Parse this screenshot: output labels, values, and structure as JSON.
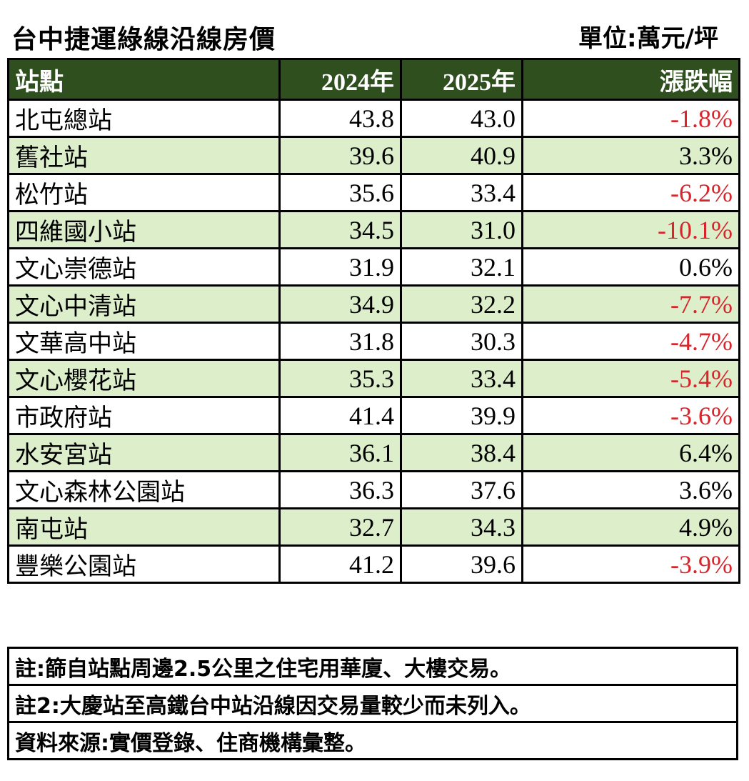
{
  "header": {
    "title": "台中捷運綠線沿線房價",
    "unit": "單位:萬元/坪"
  },
  "table": {
    "columns": [
      "站點",
      "2024年",
      "2025年",
      "漲跌幅"
    ],
    "rows": [
      {
        "station": "北屯總站",
        "y2024": "43.8",
        "y2025": "43.0",
        "change": "-1.8%"
      },
      {
        "station": "舊社站",
        "y2024": "39.6",
        "y2025": "40.9",
        "change": "3.3%"
      },
      {
        "station": "松竹站",
        "y2024": "35.6",
        "y2025": "33.4",
        "change": "-6.2%"
      },
      {
        "station": "四維國小站",
        "y2024": "34.5",
        "y2025": "31.0",
        "change": "-10.1%"
      },
      {
        "station": "文心崇德站",
        "y2024": "31.9",
        "y2025": "32.1",
        "change": "0.6%"
      },
      {
        "station": "文心中清站",
        "y2024": "34.9",
        "y2025": "32.2",
        "change": "-7.7%"
      },
      {
        "station": "文華高中站",
        "y2024": "31.8",
        "y2025": "30.3",
        "change": "-4.7%"
      },
      {
        "station": "文心櫻花站",
        "y2024": "35.3",
        "y2025": "33.4",
        "change": "-5.4%"
      },
      {
        "station": "市政府站",
        "y2024": "41.4",
        "y2025": "39.9",
        "change": "-3.6%"
      },
      {
        "station": "水安宮站",
        "y2024": "36.1",
        "y2025": "38.4",
        "change": "6.4%"
      },
      {
        "station": "文心森林公園站",
        "y2024": "36.3",
        "y2025": "37.6",
        "change": "3.6%"
      },
      {
        "station": "南屯站",
        "y2024": "32.7",
        "y2025": "34.3",
        "change": "4.9%"
      },
      {
        "station": "豐樂公園站",
        "y2024": "41.2",
        "y2025": "39.6",
        "change": "-3.9%"
      }
    ]
  },
  "notes": [
    "註:篩自站點周邊2.5公里之住宅用華廈、大樓交易。",
    "註2:大慶站至高鐵台中站沿線因交易量較少而未列入。",
    "資料來源:實價登錄、住商機構彙整。"
  ],
  "colors": {
    "header_bg": "#2f4f1f",
    "alt_row_bg": "#ddeecb",
    "negative_text": "#d8242b"
  },
  "chart_data": {
    "type": "table",
    "title": "台中捷運綠線沿線房價",
    "unit": "單位:萬元/坪",
    "columns": [
      "站點",
      "2024年",
      "2025年",
      "漲跌幅"
    ],
    "categories": [
      "北屯總站",
      "舊社站",
      "松竹站",
      "四維國小站",
      "文心崇德站",
      "文心中清站",
      "文華高中站",
      "文心櫻花站",
      "市政府站",
      "水安宮站",
      "文心森林公園站",
      "南屯站",
      "豐樂公園站"
    ],
    "series": [
      {
        "name": "2024年",
        "values": [
          43.8,
          39.6,
          35.6,
          34.5,
          31.9,
          34.9,
          31.8,
          35.3,
          41.4,
          36.1,
          36.3,
          32.7,
          41.2
        ]
      },
      {
        "name": "2025年",
        "values": [
          43.0,
          40.9,
          33.4,
          31.0,
          32.1,
          32.2,
          30.3,
          33.4,
          39.9,
          38.4,
          37.6,
          34.3,
          39.6
        ]
      },
      {
        "name": "漲跌幅",
        "values": [
          -1.8,
          3.3,
          -6.2,
          -10.1,
          0.6,
          -7.7,
          -4.7,
          -5.4,
          -3.6,
          6.4,
          3.6,
          4.9,
          -3.9
        ]
      }
    ]
  }
}
